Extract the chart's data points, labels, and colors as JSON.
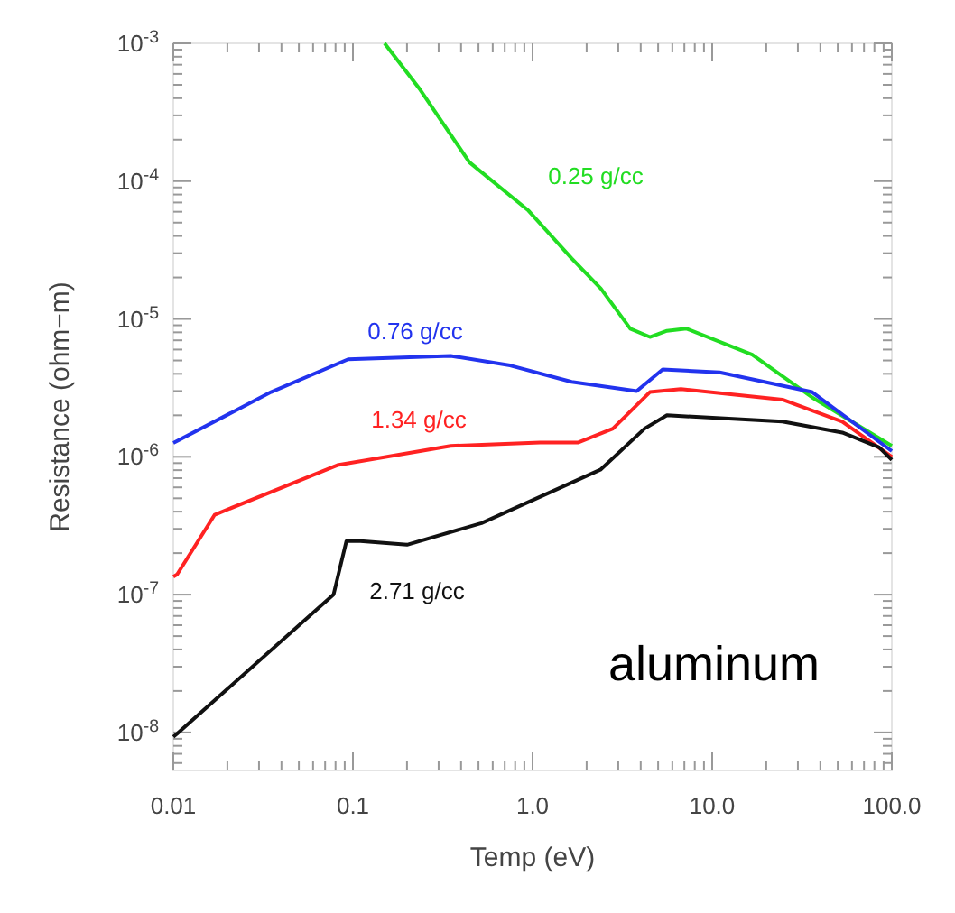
{
  "chart_data": {
    "type": "line",
    "xlabel": "Temp (eV)",
    "ylabel": "Resistance (ohm−m)",
    "log": "xy",
    "grid": false,
    "line_style": "solid",
    "xlim": [
      0.01,
      100
    ],
    "xticks": [
      {
        "value": 0.01,
        "label": "0.01"
      },
      {
        "value": 0.1,
        "label": "0.1"
      },
      {
        "value": 1,
        "label": "1.0"
      },
      {
        "value": 10,
        "label": "10.0"
      },
      {
        "value": 100,
        "label": "100.0"
      }
    ],
    "ylim": [
      5.3e-09,
      0.001
    ],
    "yticks": [
      {
        "value": 1e-08,
        "label": "10$^{-8}$"
      },
      {
        "value": 1e-07,
        "label": "10$^{-7}$"
      },
      {
        "value": 1e-06,
        "label": "10$^{-6}$"
      },
      {
        "value": 1e-05,
        "label": "10$^{-5}$"
      },
      {
        "value": 0.0001,
        "label": "10$^{-4}$"
      },
      {
        "value": 0.001,
        "label": "10$^{-3}$"
      }
    ],
    "annotations": [
      "aluminum"
    ],
    "series": [
      {
        "name": "0.25 g/cc",
        "color": "#22dd22",
        "x": [
          0.15,
          0.237,
          0.445,
          0.95,
          1.65,
          2.4,
          3.5,
          4.5,
          5.6,
          7.2,
          16.7,
          36,
          100
        ],
        "values": [
          0.001,
          0.00046,
          0.000137,
          6.1e-05,
          2.75e-05,
          1.66e-05,
          8.5e-06,
          7.4e-06,
          8.2e-06,
          8.5e-06,
          5.5e-06,
          2.7e-06,
          1.2e-06
        ]
      },
      {
        "name": "0.76 g/cc",
        "color": "#2233ee",
        "x": [
          0.01,
          0.035,
          0.094,
          0.35,
          0.75,
          1.65,
          3.8,
          5.3,
          11,
          36,
          100
        ],
        "values": [
          1.26e-06,
          2.95e-06,
          5.1e-06,
          5.4e-06,
          4.6e-06,
          3.5e-06,
          3e-06,
          4.3e-06,
          4.1e-06,
          2.95e-06,
          1.1e-06
        ]
      },
      {
        "name": "1.34 g/cc",
        "color": "#ff2222",
        "x": [
          0.01,
          0.0105,
          0.017,
          0.082,
          0.35,
          1.1,
          1.8,
          2.8,
          4.5,
          6.7,
          24.6,
          53,
          100
        ],
        "values": [
          1.35e-07,
          1.4e-07,
          3.8e-07,
          8.7e-07,
          1.2e-06,
          1.27e-06,
          1.27e-06,
          1.6e-06,
          2.95e-06,
          3.1e-06,
          2.6e-06,
          1.8e-06,
          1e-06
        ]
      },
      {
        "name": "2.71 g/cc",
        "color": "#111111",
        "x": [
          0.01,
          0.0105,
          0.078,
          0.092,
          0.11,
          0.2,
          0.52,
          2.4,
          4.2,
          5.6,
          24.6,
          53,
          85,
          100
        ],
        "values": [
          9.3e-09,
          9.8e-09,
          1e-07,
          2.45e-07,
          2.45e-07,
          2.3e-07,
          3.3e-07,
          8.1e-07,
          1.6e-06,
          2e-06,
          1.8e-06,
          1.5e-06,
          1.17e-06,
          9.5e-07
        ]
      }
    ]
  }
}
